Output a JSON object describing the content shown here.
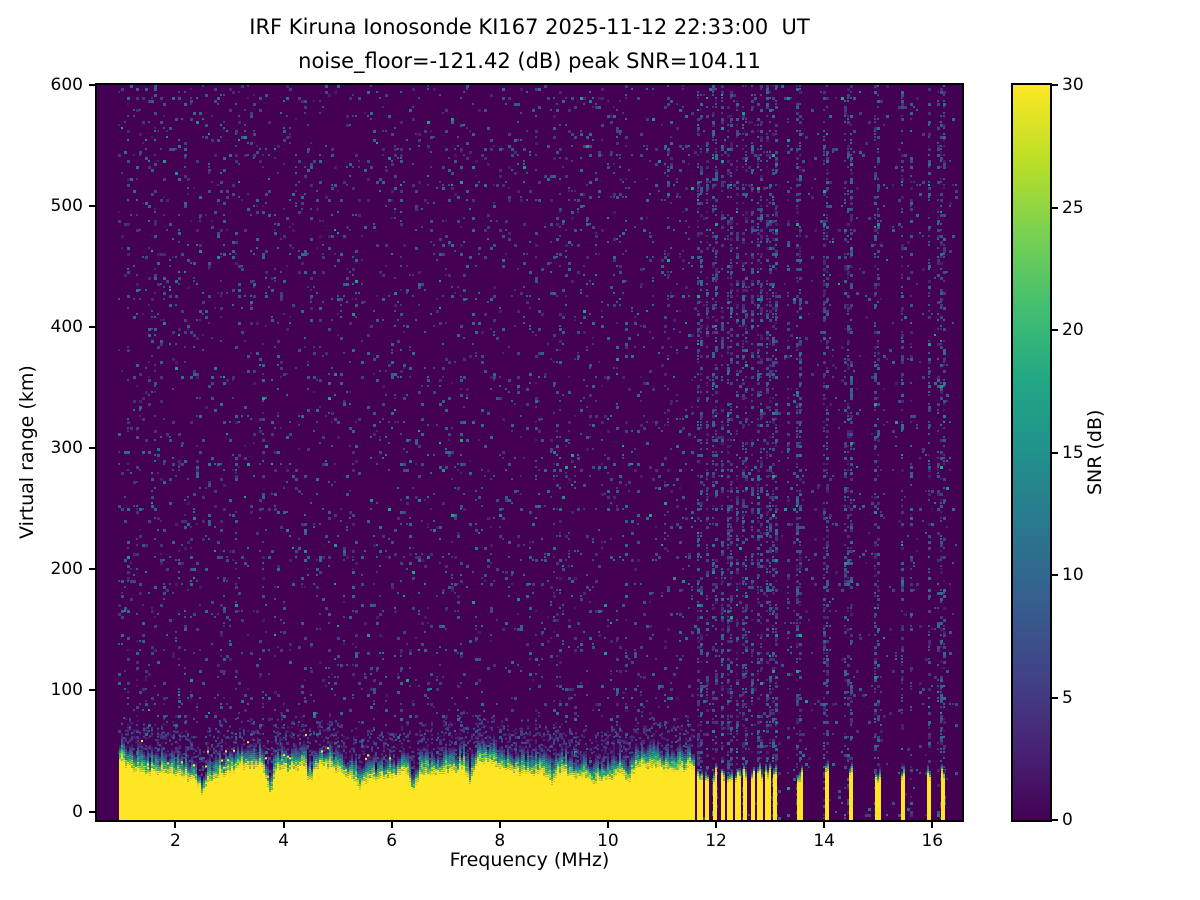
{
  "chart_data": {
    "type": "heatmap",
    "title_line1": "IRF Kiruna Ionosonde KI167 2025-11-12 22:33:00  UT",
    "title_line2": "noise_floor=-121.42 (dB) peak SNR=104.11",
    "station": "IRF Kiruna Ionosonde KI167",
    "timestamp_ut": "2025-11-12 22:33:00 UT",
    "noise_floor_db": -121.42,
    "peak_snr_db": 104.11,
    "xlabel": "Frequency (MHz)",
    "ylabel": "Virtual range (km)",
    "colorbar_label": "SNR (dB)",
    "xlim": [
      0.55,
      16.55
    ],
    "ylim": [
      -7,
      600
    ],
    "clim": [
      0,
      30
    ],
    "xticks": [
      2,
      4,
      6,
      8,
      10,
      12,
      14,
      16
    ],
    "yticks": [
      0,
      100,
      200,
      300,
      400,
      500,
      600
    ],
    "cticks": [
      0,
      5,
      10,
      15,
      20,
      25,
      30
    ],
    "colormap": "viridis",
    "viridis_stops": [
      "#440154",
      "#482475",
      "#414487",
      "#355f8d",
      "#2a788e",
      "#21918c",
      "#22a884",
      "#44bf70",
      "#7ad151",
      "#bddf26",
      "#fde725"
    ],
    "background_color": "#440154",
    "peak_color": "#fde725",
    "data_extent_mhz": [
      0.95,
      16.45
    ],
    "ground_clutter": {
      "continuous_band_mhz": [
        0.95,
        11.62
      ],
      "mean_top_km": 33,
      "max_top_km_low_freq": 48,
      "transition_thickness_km": 16,
      "notch_freqs_mhz": [
        2.5,
        3.75,
        4.5,
        5.4,
        6.4,
        7.45,
        8.95,
        10.4
      ],
      "notch_depths_km": [
        10,
        20,
        13,
        8,
        16,
        14,
        9,
        8
      ],
      "rfi_stripe_freqs_mhz": [
        11.7,
        11.84,
        11.98,
        12.12,
        12.26,
        12.4,
        12.54,
        12.68,
        12.82,
        12.96,
        13.1,
        13.55,
        14.05,
        14.5,
        15.0,
        15.45,
        15.95,
        16.2
      ],
      "stripe_halfwidth_mhz": 0.045,
      "stripe_top_km_range": [
        24,
        34
      ]
    },
    "noise": {
      "speckle_probability": 0.07,
      "speckle_snr_db": [
        2,
        11
      ],
      "rfi_striping_band_mhz": [
        11.62,
        16.45
      ]
    }
  }
}
